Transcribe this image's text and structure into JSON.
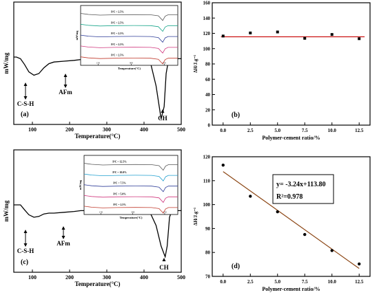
{
  "panels": [
    {
      "id": "a",
      "label": "(a)",
      "xlabel": "Temperature(°C)",
      "ylabel": "mW/mg",
      "xticks": [
        "100",
        "200",
        "300",
        "400",
        "500"
      ],
      "annotations": [
        "C-S-H",
        "AFm",
        "CH"
      ],
      "inset": {
        "ylabel": "mW/mg",
        "xlabel": "Temperature(°C)",
        "xticks": [
          "150",
          "300",
          "450"
        ],
        "curves": [
          {
            "label": "P/C = 2.5%",
            "color": "#555555"
          },
          {
            "label": "P/C = 2.5%",
            "color": "#18a58a"
          },
          {
            "label": "P/C = 2.5%",
            "color": "#2f3d98"
          },
          {
            "label": "P/C = 2.5%",
            "color": "#d0357c"
          },
          {
            "label": "P/C = 2.5%",
            "color": "#c0392b"
          }
        ]
      }
    },
    {
      "id": "c",
      "label": "(c)",
      "xlabel": "Temperature(°C)",
      "ylabel": "mW/mg",
      "xticks": [
        "100",
        "200",
        "300",
        "400",
        "500"
      ],
      "annotations": [
        "C-S-H",
        "AFm",
        "CH"
      ],
      "inset": {
        "ylabel": "mW/mg",
        "xlabel": "Temperature(°C)",
        "xticks": [
          "150",
          "300",
          "450"
        ],
        "curves": [
          {
            "label": "P/C = 12.5%",
            "color": "#555555"
          },
          {
            "label": "P/C = 10.0%",
            "color": "#1f9fcf"
          },
          {
            "label": "P/C = 7.5%",
            "color": "#2f3d98"
          },
          {
            "label": "P/C = 5.0%",
            "color": "#d0357c"
          },
          {
            "label": "P/C = 2.5%",
            "color": "#c0392b"
          }
        ]
      }
    }
  ],
  "chart_data": [
    {
      "type": "line",
      "panel": "a",
      "xlabel": "Temperature(°C)",
      "ylabel": "mW/mg",
      "xlim": [
        50,
        500
      ],
      "annotations": [
        {
          "text": "C-S-H",
          "x": 95
        },
        {
          "text": "AFm",
          "x": 195
        },
        {
          "text": "CH",
          "x": 455
        }
      ]
    },
    {
      "type": "scatter",
      "panel": "b",
      "label": "(b)",
      "xlabel": "Polymer-cement ratio/%",
      "ylabel": "ΔH/J.g⁻¹",
      "xlim": [
        -1,
        13.5
      ],
      "ylim": [
        0,
        160
      ],
      "xticks": [
        "0.0",
        "2.5",
        "5.0",
        "7.5",
        "10.0",
        "12.5"
      ],
      "yticks": [
        "0",
        "20",
        "40",
        "60",
        "80",
        "100",
        "120",
        "140",
        "160"
      ],
      "x": [
        0,
        2.5,
        5,
        7.5,
        10,
        12.5
      ],
      "y": [
        116.5,
        120.5,
        121.8,
        113.5,
        118.5,
        113.0
      ],
      "fit_line": {
        "y": 115.5,
        "color": "#cc1111"
      }
    },
    {
      "type": "line",
      "panel": "c",
      "xlabel": "Temperature(°C)",
      "ylabel": "mW/mg",
      "xlim": [
        50,
        500
      ],
      "annotations": [
        {
          "text": "C-S-H",
          "x": 92
        },
        {
          "text": "AFm",
          "x": 190
        },
        {
          "text": "CH",
          "x": 460
        }
      ]
    },
    {
      "type": "scatter",
      "panel": "d",
      "label": "(d)",
      "xlabel": "Polymer-cement ratio/%",
      "ylabel": "ΔH/J.g⁻¹",
      "xlim": [
        -1,
        13.5
      ],
      "ylim": [
        70,
        120
      ],
      "xticks": [
        "0.0",
        "2.5",
        "5.0",
        "7.5",
        "10.0",
        "12.5"
      ],
      "yticks": [
        "70",
        "80",
        "90",
        "100",
        "110",
        "120"
      ],
      "x": [
        0,
        2.5,
        5,
        7.5,
        10,
        12.5
      ],
      "y": [
        116.5,
        103.5,
        97.0,
        87.5,
        80.8,
        75.2
      ],
      "fit_line": {
        "slope": -3.24,
        "intercept": 113.8,
        "color": "#8b4513"
      },
      "equation": "y= -3.24x+113.80",
      "r2": "R²=0.978"
    }
  ]
}
